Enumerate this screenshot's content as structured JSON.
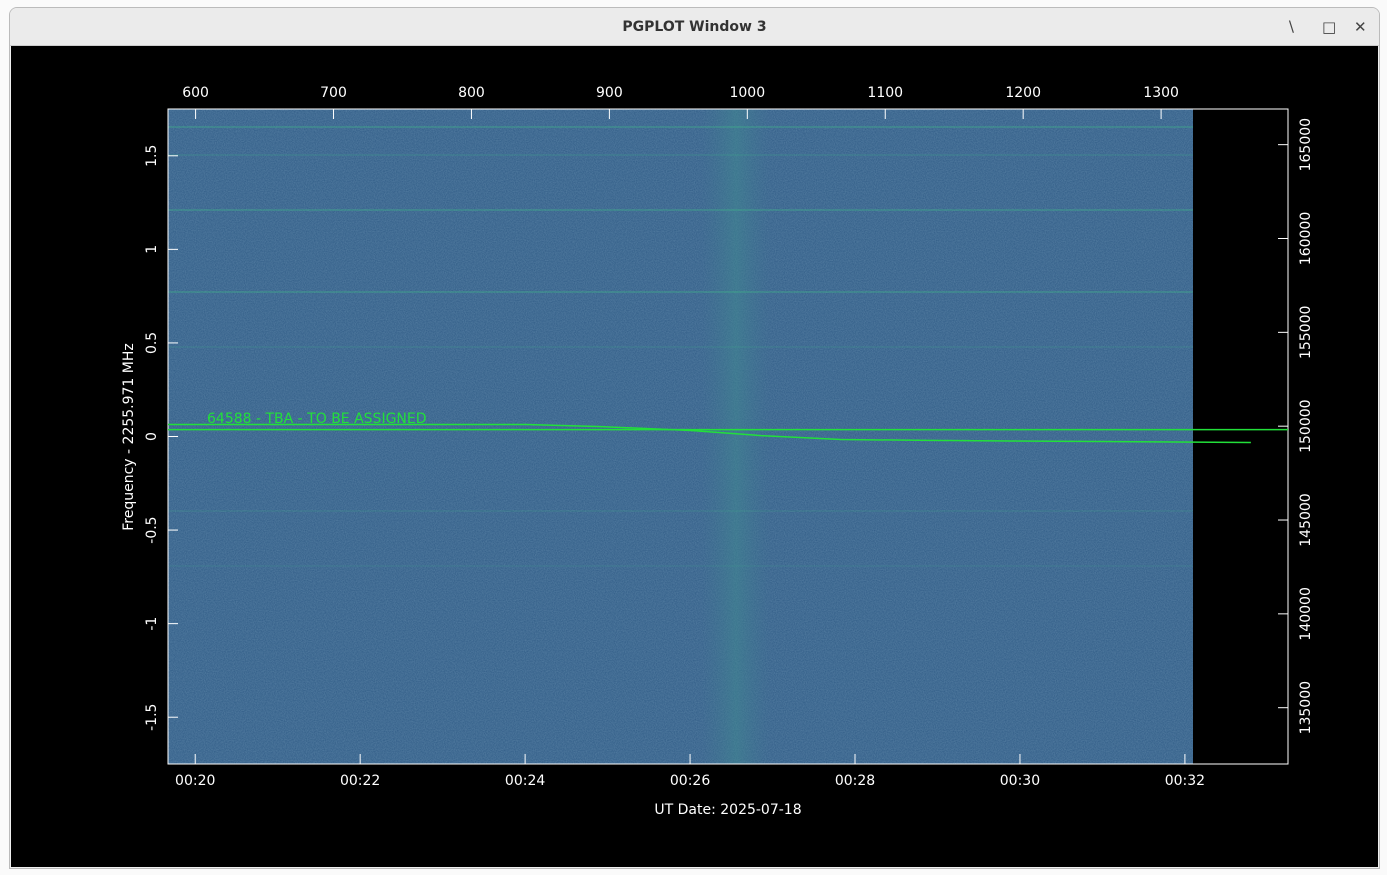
{
  "window": {
    "title": "PGPLOT Window 3"
  },
  "chart_data": {
    "type": "spectrogram",
    "x_label": "UT Date: 2025-07-18",
    "y_label": "Frequency - 2255.971 MHz",
    "annotation": "64588 - TBA - TO BE ASSIGNED",
    "xlim": [
      19.67,
      33.25
    ],
    "xticks": [
      {
        "value": 20,
        "label": "00:20"
      },
      {
        "value": 22,
        "label": "00:22"
      },
      {
        "value": 24,
        "label": "00:24"
      },
      {
        "value": 26,
        "label": "00:26"
      },
      {
        "value": 28,
        "label": "00:28"
      },
      {
        "value": 30,
        "label": "00:30"
      },
      {
        "value": 32,
        "label": "00:32"
      }
    ],
    "x2lim": [
      580,
      1392
    ],
    "x2ticks": [
      600,
      700,
      800,
      900,
      1000,
      1100,
      1200,
      1300
    ],
    "ylim": [
      -1.75,
      1.75
    ],
    "yticks": [
      -1.5,
      -1,
      -0.5,
      0,
      0.5,
      1,
      1.5
    ],
    "y2lim": [
      132000,
      166900
    ],
    "y2ticks": [
      135000,
      140000,
      145000,
      150000,
      155000,
      160000,
      165000
    ],
    "series": [
      {
        "color": "#22e03a",
        "x": [
          19.67,
          24.01,
          24.92,
          26.01,
          26.86,
          27.83,
          28.92,
          30.98,
          32.8
        ],
        "values": [
          0.064,
          0.064,
          0.053,
          0.032,
          0.005,
          -0.016,
          -0.021,
          -0.027,
          -0.032
        ]
      },
      {
        "color": "#22e03a",
        "x": [
          19.67,
          33.25
        ],
        "values": [
          0.037,
          0.037
        ]
      }
    ]
  }
}
